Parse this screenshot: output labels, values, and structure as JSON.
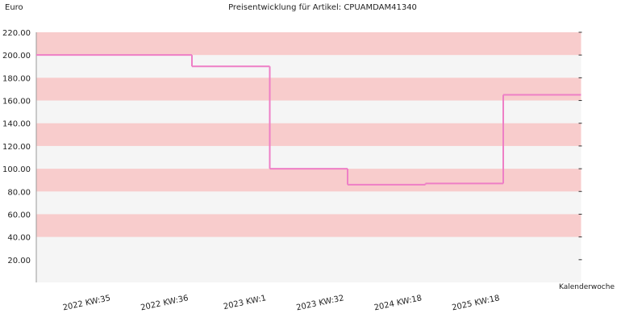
{
  "chart_data": {
    "type": "step-line",
    "title": "Preisentwicklung für Artikel: CPUAMDAM41340",
    "y_label": "Euro",
    "x_label": "Kalenderwoche",
    "categories": [
      "2022 KW:35",
      "2022 KW:36",
      "2023 KW:1",
      "2023 KW:32",
      "2024 KW:18",
      "2025 KW:18"
    ],
    "values": [
      200,
      190,
      100,
      86,
      87,
      165
    ],
    "color": "#ee7fc6",
    "ylim": [
      0,
      220
    ],
    "yticks": [
      {
        "value": 20,
        "label": "20.00"
      },
      {
        "value": 40,
        "label": "40.00"
      },
      {
        "value": 60,
        "label": "60.00"
      },
      {
        "value": 80,
        "label": "80.00"
      },
      {
        "value": 100,
        "label": "100.00"
      },
      {
        "value": 120,
        "label": "120.00"
      },
      {
        "value": 140,
        "label": "140.00"
      },
      {
        "value": 160,
        "label": "160.00"
      },
      {
        "value": 180,
        "label": "180.00"
      },
      {
        "value": 200,
        "label": "200.00"
      },
      {
        "value": 220,
        "label": "220.00"
      }
    ]
  }
}
